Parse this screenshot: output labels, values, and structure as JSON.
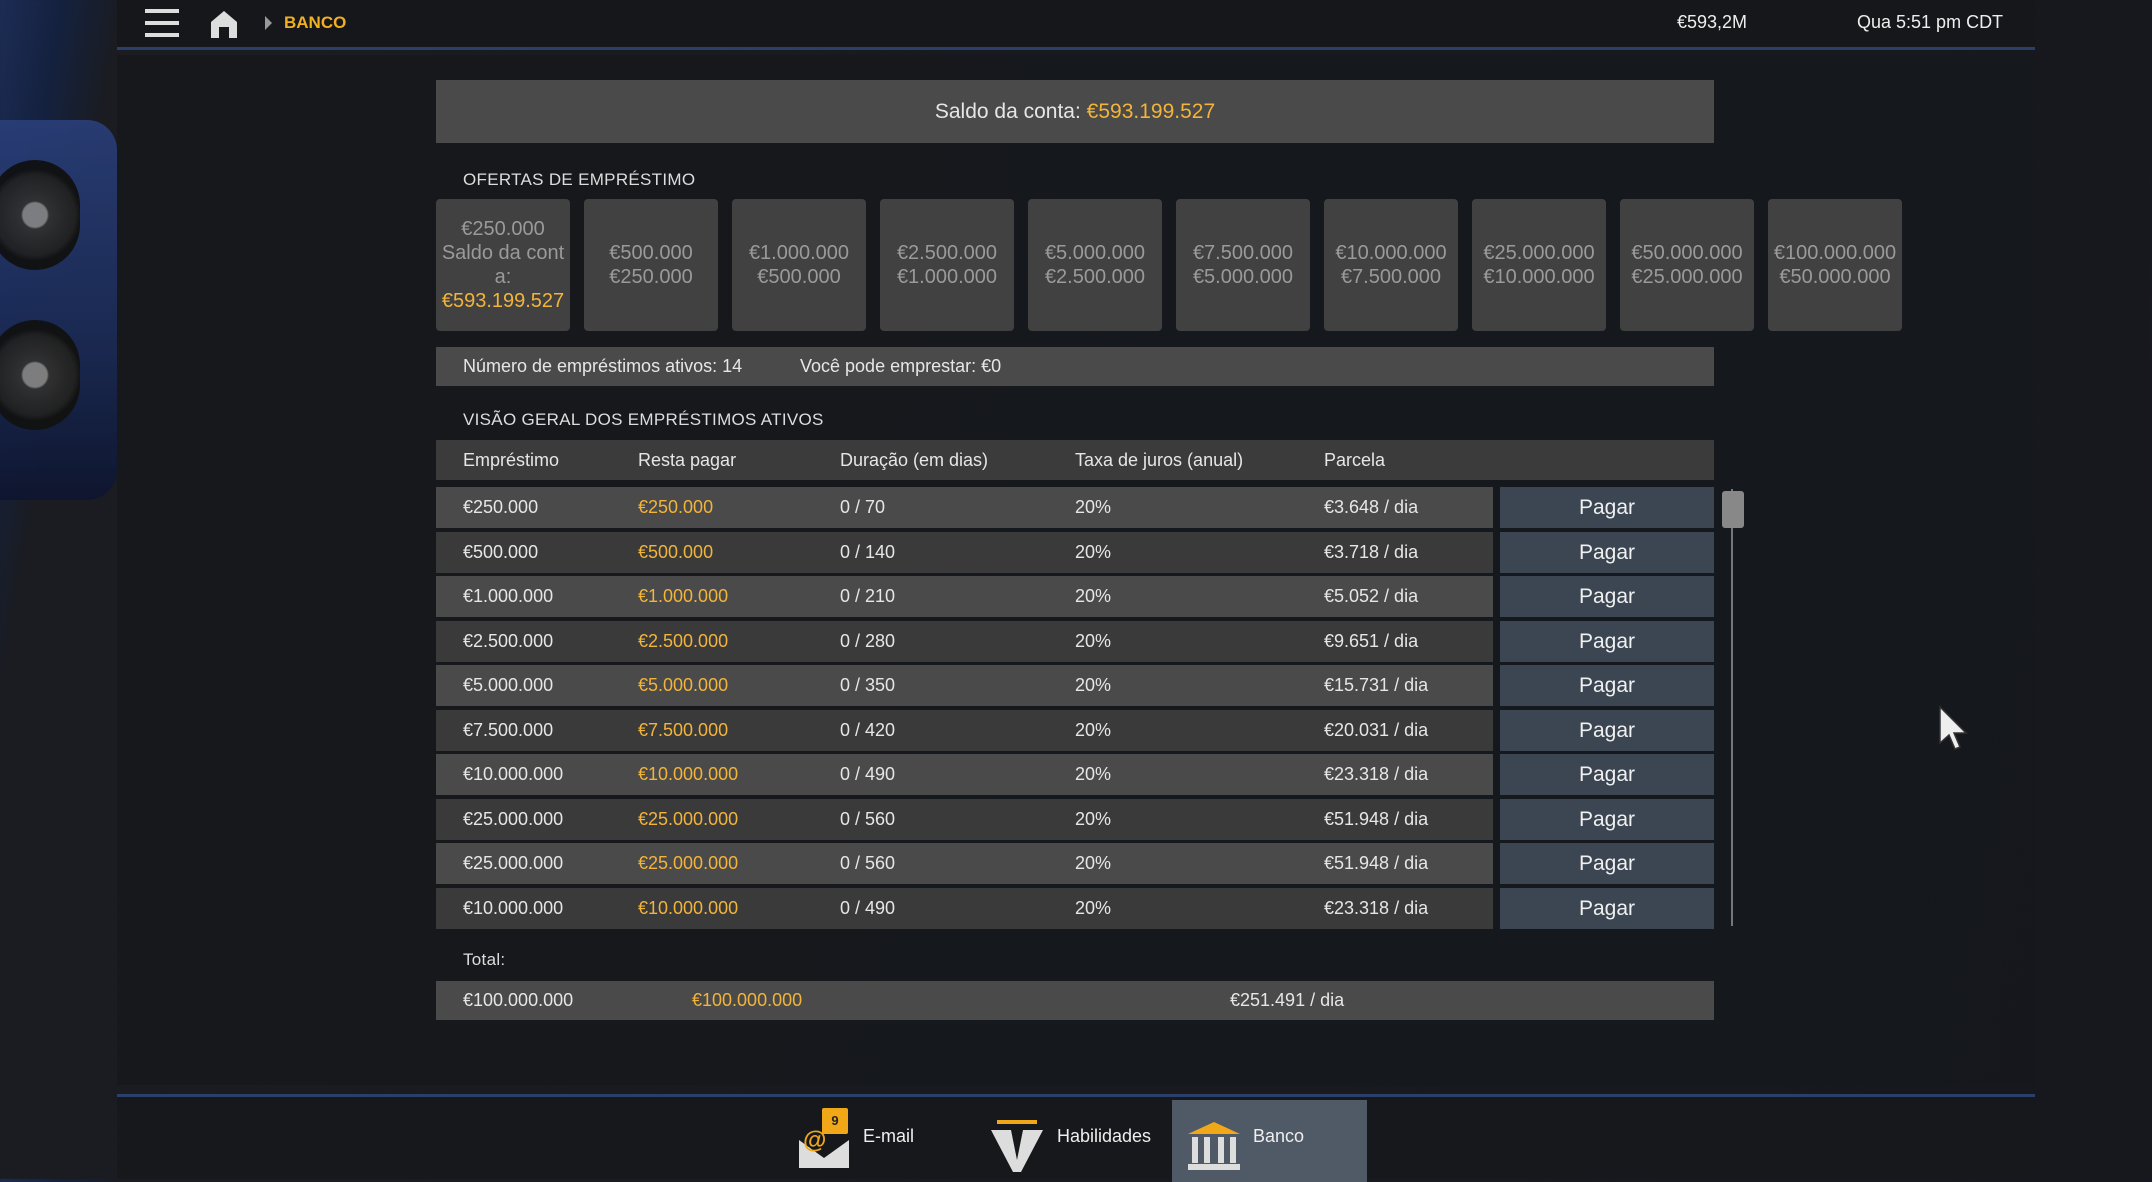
{
  "topbar": {
    "breadcrumb": "BANCO",
    "balance_short": "€593,2M",
    "clock": "Qua 5:51 pm CDT"
  },
  "saldo": {
    "label": "Saldo da conta: ",
    "value": "€593.199.527"
  },
  "offers": {
    "title": "OFERTAS DE EMPRÉSTIMO",
    "cards": [
      {
        "line1": "€250.000",
        "line2": "Saldo da conta:",
        "line3": "€593.199.527"
      },
      {
        "line1": "€500.000",
        "line2": "€250.000"
      },
      {
        "line1": "€1.000.000",
        "line2": "€500.000"
      },
      {
        "line1": "€2.500.000",
        "line2": "€1.000.000"
      },
      {
        "line1": "€5.000.000",
        "line2": "€2.500.000"
      },
      {
        "line1": "€7.500.000",
        "line2": "€5.000.000"
      },
      {
        "line1": "€10.000.000",
        "line2": "€7.500.000"
      },
      {
        "line1": "€25.000.000",
        "line2": "€10.000.000"
      },
      {
        "line1": "€50.000.000",
        "line2": "€25.000.000"
      },
      {
        "line1": "€100.000.000",
        "line2": "€50.000.000"
      }
    ]
  },
  "info": {
    "active_loans": "Número de empréstimos ativos: 14",
    "can_borrow": "Você pode emprestar: €0"
  },
  "overview": {
    "title": "VISÃO GERAL DOS EMPRÉSTIMOS ATIVOS",
    "headers": [
      "Empréstimo",
      "Resta pagar",
      "Duração (em dias)",
      "Taxa de juros (anual)",
      "Parcela"
    ],
    "pay_label": "Pagar",
    "rows": [
      [
        "€250.000",
        "€250.000",
        "0 / 70",
        "20%",
        "€3.648 / dia"
      ],
      [
        "€500.000",
        "€500.000",
        "0 / 140",
        "20%",
        "€3.718 / dia"
      ],
      [
        "€1.000.000",
        "€1.000.000",
        "0 / 210",
        "20%",
        "€5.052 / dia"
      ],
      [
        "€2.500.000",
        "€2.500.000",
        "0 / 280",
        "20%",
        "€9.651 / dia"
      ],
      [
        "€5.000.000",
        "€5.000.000",
        "0 / 350",
        "20%",
        "€15.731 / dia"
      ],
      [
        "€7.500.000",
        "€7.500.000",
        "0 / 420",
        "20%",
        "€20.031 / dia"
      ],
      [
        "€10.000.000",
        "€10.000.000",
        "0 / 490",
        "20%",
        "€23.318 / dia"
      ],
      [
        "€25.000.000",
        "€25.000.000",
        "0 / 560",
        "20%",
        "€51.948 / dia"
      ],
      [
        "€25.000.000",
        "€25.000.000",
        "0 / 560",
        "20%",
        "€51.948 / dia"
      ],
      [
        "€10.000.000",
        "€10.000.000",
        "0 / 490",
        "20%",
        "€23.318 / dia"
      ]
    ],
    "total_label": "Total:",
    "total": {
      "loan": "€100.000.000",
      "remaining": "€100.000.000",
      "installment": "€251.491 / dia"
    }
  },
  "bottom_tabs": [
    {
      "label": "E-mail",
      "icon": "email-icon",
      "badge": "9"
    },
    {
      "label": "Habilidades",
      "icon": "skills-icon"
    },
    {
      "label": "Banco",
      "icon": "bank-icon",
      "active": true
    }
  ],
  "colors": {
    "accent": "#f2b43a",
    "active_tab": "#4f5a66",
    "pay_button": "#3b4652"
  }
}
